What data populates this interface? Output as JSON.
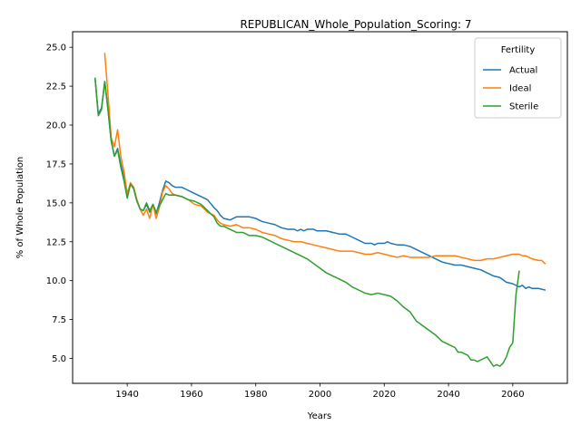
{
  "chart_data": {
    "type": "line",
    "title": "REPUBLICAN_Whole_Population_Scoring: 7",
    "xlabel": "Years",
    "ylabel": "% of Whole Population",
    "xlim": [
      1923,
      2077
    ],
    "ylim": [
      3.4,
      26.0
    ],
    "xticks": [
      1940,
      1960,
      1980,
      2000,
      2020,
      2040,
      2060
    ],
    "yticks": [
      5.0,
      7.5,
      10.0,
      12.5,
      15.0,
      17.5,
      20.0,
      22.5,
      25.0
    ],
    "ytick_labels": [
      "5.0",
      "7.5",
      "10.0",
      "12.5",
      "15.0",
      "17.5",
      "20.0",
      "22.5",
      "25.0"
    ],
    "grid": false,
    "legend": {
      "title": "Fertility",
      "position": "top-right"
    },
    "series": [
      {
        "name": "Actual",
        "color": "#1f77b4",
        "points": [
          [
            1930,
            23.0
          ],
          [
            1931,
            20.7
          ],
          [
            1932,
            21.1
          ],
          [
            1933,
            22.8
          ],
          [
            1934,
            21.0
          ],
          [
            1935,
            19.0
          ],
          [
            1936,
            18.0
          ],
          [
            1937,
            18.5
          ],
          [
            1938,
            17.5
          ],
          [
            1939,
            16.6
          ],
          [
            1940,
            15.4
          ],
          [
            1941,
            16.2
          ],
          [
            1942,
            16.0
          ],
          [
            1943,
            15.2
          ],
          [
            1944,
            14.6
          ],
          [
            1945,
            14.5
          ],
          [
            1946,
            14.9
          ],
          [
            1947,
            14.4
          ],
          [
            1948,
            14.9
          ],
          [
            1949,
            14.3
          ],
          [
            1950,
            15.0
          ],
          [
            1951,
            15.8
          ],
          [
            1952,
            16.4
          ],
          [
            1953,
            16.3
          ],
          [
            1954,
            16.1
          ],
          [
            1955,
            16.0
          ],
          [
            1957,
            16.0
          ],
          [
            1959,
            15.8
          ],
          [
            1961,
            15.6
          ],
          [
            1962,
            15.5
          ],
          [
            1963,
            15.4
          ],
          [
            1965,
            15.2
          ],
          [
            1967,
            14.7
          ],
          [
            1968,
            14.5
          ],
          [
            1969,
            14.2
          ],
          [
            1970,
            14.0
          ],
          [
            1972,
            13.9
          ],
          [
            1974,
            14.1
          ],
          [
            1976,
            14.1
          ],
          [
            1978,
            14.1
          ],
          [
            1980,
            14.0
          ],
          [
            1982,
            13.8
          ],
          [
            1984,
            13.7
          ],
          [
            1986,
            13.6
          ],
          [
            1988,
            13.4
          ],
          [
            1990,
            13.3
          ],
          [
            1992,
            13.3
          ],
          [
            1993,
            13.2
          ],
          [
            1994,
            13.3
          ],
          [
            1995,
            13.2
          ],
          [
            1996,
            13.3
          ],
          [
            1998,
            13.3
          ],
          [
            1999,
            13.2
          ],
          [
            2000,
            13.2
          ],
          [
            2002,
            13.2
          ],
          [
            2004,
            13.1
          ],
          [
            2006,
            13.0
          ],
          [
            2008,
            13.0
          ],
          [
            2010,
            12.8
          ],
          [
            2012,
            12.6
          ],
          [
            2014,
            12.4
          ],
          [
            2016,
            12.4
          ],
          [
            2017,
            12.3
          ],
          [
            2018,
            12.4
          ],
          [
            2020,
            12.4
          ],
          [
            2021,
            12.5
          ],
          [
            2022,
            12.4
          ],
          [
            2024,
            12.3
          ],
          [
            2026,
            12.3
          ],
          [
            2028,
            12.2
          ],
          [
            2030,
            12.0
          ],
          [
            2032,
            11.8
          ],
          [
            2034,
            11.6
          ],
          [
            2036,
            11.4
          ],
          [
            2038,
            11.2
          ],
          [
            2040,
            11.1
          ],
          [
            2042,
            11.0
          ],
          [
            2044,
            11.0
          ],
          [
            2046,
            10.9
          ],
          [
            2048,
            10.8
          ],
          [
            2050,
            10.7
          ],
          [
            2052,
            10.5
          ],
          [
            2054,
            10.3
          ],
          [
            2056,
            10.2
          ],
          [
            2058,
            9.9
          ],
          [
            2060,
            9.8
          ],
          [
            2062,
            9.6
          ],
          [
            2063,
            9.7
          ],
          [
            2064,
            9.5
          ],
          [
            2065,
            9.6
          ],
          [
            2066,
            9.5
          ],
          [
            2068,
            9.5
          ],
          [
            2070,
            9.4
          ]
        ]
      },
      {
        "name": "Ideal",
        "color": "#ff7f0e",
        "points": [
          [
            1933,
            24.6
          ],
          [
            1934,
            22.0
          ],
          [
            1935,
            19.2
          ],
          [
            1936,
            18.6
          ],
          [
            1937,
            19.7
          ],
          [
            1938,
            18.0
          ],
          [
            1939,
            17.0
          ],
          [
            1940,
            15.6
          ],
          [
            1941,
            16.3
          ],
          [
            1942,
            16.0
          ],
          [
            1943,
            15.2
          ],
          [
            1944,
            14.6
          ],
          [
            1945,
            14.2
          ],
          [
            1946,
            14.6
          ],
          [
            1947,
            14.0
          ],
          [
            1948,
            14.9
          ],
          [
            1949,
            14.0
          ],
          [
            1950,
            14.7
          ],
          [
            1951,
            15.7
          ],
          [
            1952,
            16.1
          ],
          [
            1953,
            15.9
          ],
          [
            1954,
            15.6
          ],
          [
            1955,
            15.5
          ],
          [
            1957,
            15.4
          ],
          [
            1959,
            15.2
          ],
          [
            1961,
            14.9
          ],
          [
            1963,
            14.8
          ],
          [
            1965,
            14.4
          ],
          [
            1967,
            14.2
          ],
          [
            1968,
            13.9
          ],
          [
            1969,
            13.7
          ],
          [
            1970,
            13.6
          ],
          [
            1972,
            13.5
          ],
          [
            1974,
            13.6
          ],
          [
            1976,
            13.4
          ],
          [
            1978,
            13.4
          ],
          [
            1980,
            13.3
          ],
          [
            1982,
            13.1
          ],
          [
            1984,
            13.0
          ],
          [
            1986,
            12.9
          ],
          [
            1988,
            12.7
          ],
          [
            1990,
            12.6
          ],
          [
            1992,
            12.5
          ],
          [
            1994,
            12.5
          ],
          [
            1996,
            12.4
          ],
          [
            1998,
            12.3
          ],
          [
            2000,
            12.2
          ],
          [
            2002,
            12.1
          ],
          [
            2004,
            12.0
          ],
          [
            2006,
            11.9
          ],
          [
            2008,
            11.9
          ],
          [
            2010,
            11.9
          ],
          [
            2012,
            11.8
          ],
          [
            2014,
            11.7
          ],
          [
            2016,
            11.7
          ],
          [
            2018,
            11.8
          ],
          [
            2020,
            11.7
          ],
          [
            2022,
            11.6
          ],
          [
            2024,
            11.5
          ],
          [
            2026,
            11.6
          ],
          [
            2028,
            11.5
          ],
          [
            2030,
            11.5
          ],
          [
            2032,
            11.5
          ],
          [
            2034,
            11.5
          ],
          [
            2036,
            11.6
          ],
          [
            2038,
            11.6
          ],
          [
            2040,
            11.6
          ],
          [
            2042,
            11.6
          ],
          [
            2044,
            11.5
          ],
          [
            2046,
            11.4
          ],
          [
            2048,
            11.3
          ],
          [
            2050,
            11.3
          ],
          [
            2052,
            11.4
          ],
          [
            2054,
            11.4
          ],
          [
            2056,
            11.5
          ],
          [
            2058,
            11.6
          ],
          [
            2060,
            11.7
          ],
          [
            2062,
            11.7
          ],
          [
            2063,
            11.6
          ],
          [
            2064,
            11.6
          ],
          [
            2066,
            11.4
          ],
          [
            2068,
            11.3
          ],
          [
            2069,
            11.3
          ],
          [
            2070,
            11.1
          ]
        ]
      },
      {
        "name": "Sterile",
        "color": "#2ca02c",
        "points": [
          [
            1930,
            23.0
          ],
          [
            1931,
            20.6
          ],
          [
            1932,
            21.0
          ],
          [
            1933,
            22.8
          ],
          [
            1934,
            21.0
          ],
          [
            1935,
            19.0
          ],
          [
            1936,
            18.0
          ],
          [
            1937,
            18.4
          ],
          [
            1938,
            17.3
          ],
          [
            1939,
            16.4
          ],
          [
            1940,
            15.3
          ],
          [
            1941,
            16.2
          ],
          [
            1942,
            15.9
          ],
          [
            1943,
            15.1
          ],
          [
            1944,
            14.6
          ],
          [
            1945,
            14.5
          ],
          [
            1946,
            15.0
          ],
          [
            1947,
            14.5
          ],
          [
            1948,
            14.9
          ],
          [
            1949,
            14.4
          ],
          [
            1950,
            14.8
          ],
          [
            1951,
            15.2
          ],
          [
            1952,
            15.6
          ],
          [
            1953,
            15.5
          ],
          [
            1954,
            15.5
          ],
          [
            1955,
            15.5
          ],
          [
            1957,
            15.4
          ],
          [
            1959,
            15.2
          ],
          [
            1961,
            15.1
          ],
          [
            1963,
            14.9
          ],
          [
            1965,
            14.5
          ],
          [
            1967,
            14.1
          ],
          [
            1968,
            13.7
          ],
          [
            1969,
            13.5
          ],
          [
            1970,
            13.5
          ],
          [
            1972,
            13.3
          ],
          [
            1974,
            13.1
          ],
          [
            1976,
            13.1
          ],
          [
            1978,
            12.9
          ],
          [
            1980,
            12.9
          ],
          [
            1982,
            12.8
          ],
          [
            1984,
            12.6
          ],
          [
            1986,
            12.4
          ],
          [
            1988,
            12.2
          ],
          [
            1990,
            12.0
          ],
          [
            1992,
            11.8
          ],
          [
            1994,
            11.6
          ],
          [
            1996,
            11.4
          ],
          [
            1998,
            11.1
          ],
          [
            2000,
            10.8
          ],
          [
            2002,
            10.5
          ],
          [
            2004,
            10.3
          ],
          [
            2006,
            10.1
          ],
          [
            2008,
            9.9
          ],
          [
            2010,
            9.6
          ],
          [
            2012,
            9.4
          ],
          [
            2014,
            9.2
          ],
          [
            2016,
            9.1
          ],
          [
            2018,
            9.2
          ],
          [
            2020,
            9.1
          ],
          [
            2022,
            9.0
          ],
          [
            2024,
            8.7
          ],
          [
            2026,
            8.3
          ],
          [
            2028,
            8.0
          ],
          [
            2030,
            7.4
          ],
          [
            2032,
            7.1
          ],
          [
            2034,
            6.8
          ],
          [
            2036,
            6.5
          ],
          [
            2038,
            6.1
          ],
          [
            2040,
            5.9
          ],
          [
            2042,
            5.7
          ],
          [
            2043,
            5.4
          ],
          [
            2044,
            5.4
          ],
          [
            2046,
            5.2
          ],
          [
            2047,
            4.9
          ],
          [
            2048,
            4.9
          ],
          [
            2049,
            4.8
          ],
          [
            2050,
            4.9
          ],
          [
            2052,
            5.1
          ],
          [
            2053,
            4.8
          ],
          [
            2054,
            4.5
          ],
          [
            2055,
            4.6
          ],
          [
            2056,
            4.5
          ],
          [
            2057,
            4.7
          ],
          [
            2058,
            5.1
          ],
          [
            2059,
            5.7
          ],
          [
            2060,
            6.0
          ],
          [
            2061,
            9.1
          ],
          [
            2062,
            10.6
          ]
        ]
      }
    ]
  }
}
